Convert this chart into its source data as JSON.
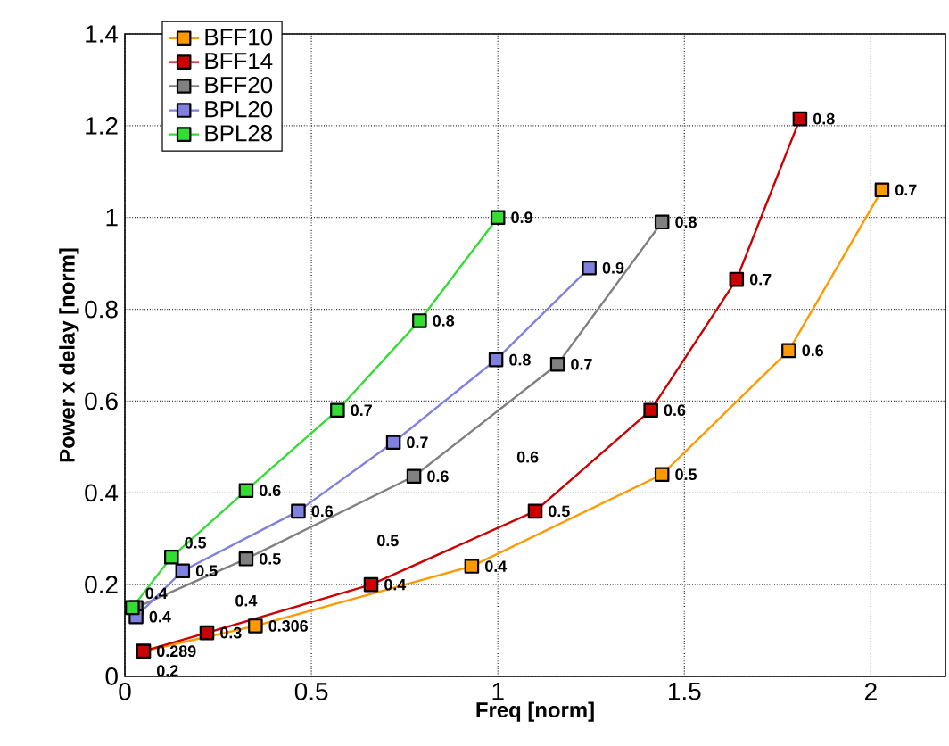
{
  "chart_data": {
    "type": "line",
    "xlabel": "Freq [norm]",
    "ylabel": "Power x delay [norm]",
    "xlim": [
      0,
      2.2
    ],
    "xticks": [
      0,
      0.5,
      1,
      1.5,
      2
    ],
    "ylim": [
      0,
      1.4
    ],
    "yticks": [
      0,
      0.2,
      0.4,
      0.6,
      0.8,
      1,
      1.2,
      1.4
    ],
    "grid": true,
    "legend": "top left",
    "marker": "square",
    "line_style": "solid",
    "series": [
      {
        "name": "BFF10",
        "color": "#ff9900",
        "x": [
          0.05,
          0.35,
          0.93,
          1.44,
          1.78,
          2.03
        ],
        "values": [
          0.055,
          0.11,
          0.24,
          0.44,
          0.71,
          1.06
        ]
      },
      {
        "name": "BFF14",
        "color": "#cc0000",
        "x": [
          0.05,
          0.22,
          0.66,
          1.1,
          1.41,
          1.64,
          1.81
        ],
        "values": [
          0.055,
          0.095,
          0.2,
          0.36,
          0.58,
          0.865,
          1.215
        ]
      },
      {
        "name": "BFF20",
        "color": "#808080",
        "x": [
          0.03,
          0.325,
          0.775,
          1.16,
          1.44
        ],
        "values": [
          0.15,
          0.256,
          0.436,
          0.68,
          0.99
        ]
      },
      {
        "name": "BPL20",
        "color": "#8080e0",
        "x": [
          0.03,
          0.155,
          0.465,
          0.72,
          0.995,
          1.245
        ],
        "values": [
          0.13,
          0.23,
          0.36,
          0.51,
          0.69,
          0.89
        ]
      },
      {
        "name": "BPL28",
        "color": "#33dd33",
        "x": [
          0.02,
          0.125,
          0.325,
          0.57,
          0.79,
          1.0
        ],
        "values": [
          0.15,
          0.26,
          0.405,
          0.58,
          0.775,
          1.0
        ]
      }
    ],
    "annotations": [
      {
        "text": "0.289",
        "x": 0.05,
        "y": 0.055
      },
      {
        "text": "0.306",
        "x": 0.35,
        "y": 0.11
      },
      {
        "text": "0.4",
        "x": 0.93,
        "y": 0.24
      },
      {
        "text": "0.5",
        "x": 1.44,
        "y": 0.44
      },
      {
        "text": "0.6",
        "x": 1.78,
        "y": 0.71
      },
      {
        "text": "0.7",
        "x": 2.03,
        "y": 1.06
      },
      {
        "text": "0.2",
        "x": 0.05,
        "y": 0.055
      },
      {
        "text": "0.3",
        "x": 0.22,
        "y": 0.095
      },
      {
        "text": "0.4",
        "x": 0.66,
        "y": 0.2
      },
      {
        "text": "0.5",
        "x": 1.1,
        "y": 0.36
      },
      {
        "text": "0.6",
        "x": 1.41,
        "y": 0.58
      },
      {
        "text": "0.7",
        "x": 1.64,
        "y": 0.865
      },
      {
        "text": "0.8",
        "x": 1.81,
        "y": 1.215
      },
      {
        "text": "0.5",
        "x": 0.325,
        "y": 0.256
      },
      {
        "text": "0.6",
        "x": 0.775,
        "y": 0.436
      },
      {
        "text": "0.7",
        "x": 1.16,
        "y": 0.68
      },
      {
        "text": "0.8",
        "x": 1.44,
        "y": 0.99
      },
      {
        "text": "0.4",
        "x": 0.03,
        "y": 0.13
      },
      {
        "text": "0.5",
        "x": 0.155,
        "y": 0.23
      },
      {
        "text": "0.6",
        "x": 0.465,
        "y": 0.36
      },
      {
        "text": "0.7",
        "x": 0.72,
        "y": 0.51
      },
      {
        "text": "0.8",
        "x": 0.995,
        "y": 0.69
      },
      {
        "text": "0.9",
        "x": 1.245,
        "y": 0.89
      },
      {
        "text": "0.4",
        "x": 0.02,
        "y": 0.15
      },
      {
        "text": "0.5",
        "x": 0.125,
        "y": 0.26
      },
      {
        "text": "0.6",
        "x": 0.325,
        "y": 0.405
      },
      {
        "text": "0.7",
        "x": 0.57,
        "y": 0.58
      },
      {
        "text": "0.8",
        "x": 0.79,
        "y": 0.775
      },
      {
        "text": "0.9",
        "x": 1.0,
        "y": 1.0
      },
      "0.4",
      "0.5",
      "0.6"
    ]
  }
}
